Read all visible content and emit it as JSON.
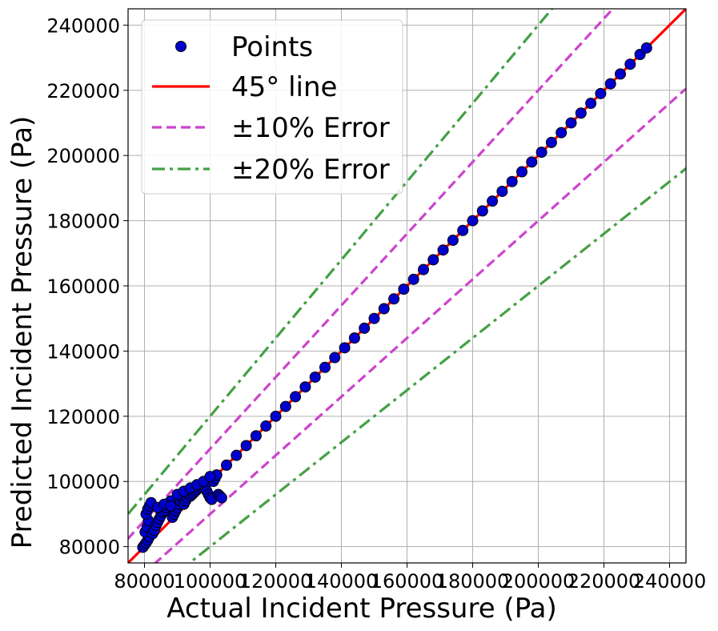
{
  "chart_data": {
    "type": "scatter",
    "xlabel": "Actual Incident Pressure (Pa)",
    "ylabel": "Predicted Incident Pressure (Pa)",
    "xlim": [
      75000,
      245000
    ],
    "ylim": [
      75000,
      245000
    ],
    "xticks": [
      "80000",
      "100000",
      "120000",
      "140000",
      "160000",
      "180000",
      "200000",
      "220000",
      "240000"
    ],
    "yticks": [
      "80000",
      "100000",
      "120000",
      "140000",
      "160000",
      "180000",
      "200000",
      "220000",
      "240000"
    ],
    "grid": true,
    "legend_position": "top-left",
    "legend": [
      {
        "label": "Points",
        "style": "marker",
        "color": "#0000cc"
      },
      {
        "label": "45° line",
        "style": "solid",
        "color": "#ff0000"
      },
      {
        "label": "±10% Error",
        "style": "dashed",
        "color": "#cc44cc"
      },
      {
        "label": "±20% Error",
        "style": "dashdot",
        "color": "#44a044"
      }
    ],
    "reference_lines": [
      {
        "name": "45° line",
        "slope": 1.0
      },
      {
        "name": "+10%",
        "slope": 1.1
      },
      {
        "name": "-10%",
        "slope": 0.9
      },
      {
        "name": "+20%",
        "slope": 1.2
      },
      {
        "name": "-20%",
        "slope": 0.8
      }
    ],
    "points": [
      [
        79500,
        79800
      ],
      [
        80000,
        80500
      ],
      [
        80500,
        81200
      ],
      [
        81000,
        82000
      ],
      [
        81500,
        83000
      ],
      [
        80200,
        84500
      ],
      [
        80800,
        86000
      ],
      [
        81200,
        88000
      ],
      [
        80500,
        90000
      ],
      [
        81000,
        91500
      ],
      [
        81500,
        92500
      ],
      [
        82000,
        93500
      ],
      [
        82500,
        84000
      ],
      [
        83000,
        85000
      ],
      [
        83500,
        86500
      ],
      [
        84000,
        87500
      ],
      [
        84500,
        88500
      ],
      [
        85000,
        89500
      ],
      [
        85500,
        90500
      ],
      [
        86000,
        91000
      ],
      [
        86500,
        92000
      ],
      [
        87000,
        93000
      ],
      [
        87500,
        93500
      ],
      [
        88000,
        94000
      ],
      [
        88500,
        89000
      ],
      [
        89000,
        90000
      ],
      [
        89500,
        91000
      ],
      [
        90000,
        92000
      ],
      [
        90500,
        93000
      ],
      [
        91000,
        94000
      ],
      [
        91500,
        95000
      ],
      [
        92000,
        93000
      ],
      [
        92500,
        94000
      ],
      [
        93000,
        95000
      ],
      [
        93500,
        96000
      ],
      [
        94000,
        95500
      ],
      [
        94500,
        96000
      ],
      [
        95000,
        96500
      ],
      [
        95500,
        97000
      ],
      [
        96000,
        97500
      ],
      [
        96500,
        98000
      ],
      [
        97000,
        98500
      ],
      [
        97500,
        99000
      ],
      [
        98000,
        99500
      ],
      [
        98500,
        98500
      ],
      [
        99000,
        97000
      ],
      [
        99500,
        96000
      ],
      [
        100000,
        95000
      ],
      [
        100500,
        94500
      ],
      [
        101000,
        100000
      ],
      [
        101500,
        101000
      ],
      [
        102000,
        102000
      ],
      [
        102500,
        96000
      ],
      [
        103000,
        95500
      ],
      [
        103500,
        95000
      ],
      [
        84000,
        92000
      ],
      [
        86000,
        93000
      ],
      [
        88000,
        92500
      ],
      [
        90000,
        96000
      ],
      [
        92000,
        97000
      ],
      [
        94000,
        98000
      ],
      [
        96000,
        99000
      ],
      [
        98000,
        100000
      ],
      [
        100000,
        101500
      ],
      [
        105000,
        105000
      ],
      [
        108000,
        108000
      ],
      [
        111000,
        111000
      ],
      [
        114000,
        114000
      ],
      [
        117000,
        117000
      ],
      [
        120000,
        120000
      ],
      [
        123000,
        123000
      ],
      [
        126000,
        126000
      ],
      [
        129000,
        129000
      ],
      [
        132000,
        132000
      ],
      [
        135000,
        135000
      ],
      [
        138000,
        138000
      ],
      [
        141000,
        141000
      ],
      [
        144000,
        144000
      ],
      [
        147000,
        147000
      ],
      [
        150000,
        150000
      ],
      [
        153000,
        153000
      ],
      [
        156000,
        156000
      ],
      [
        159000,
        159000
      ],
      [
        162000,
        162000
      ],
      [
        165000,
        165000
      ],
      [
        168000,
        168000
      ],
      [
        171000,
        171000
      ],
      [
        174000,
        174000
      ],
      [
        177000,
        177000
      ],
      [
        180000,
        180000
      ],
      [
        183000,
        183000
      ],
      [
        186000,
        186000
      ],
      [
        189000,
        189000
      ],
      [
        192000,
        192000
      ],
      [
        195000,
        195000
      ],
      [
        198000,
        198000
      ],
      [
        201000,
        201000
      ],
      [
        204000,
        204000
      ],
      [
        207000,
        207000
      ],
      [
        210000,
        210000
      ],
      [
        213000,
        213000
      ],
      [
        216000,
        216000
      ],
      [
        219000,
        219000
      ],
      [
        222000,
        222000
      ],
      [
        225000,
        225000
      ],
      [
        228000,
        228000
      ],
      [
        231000,
        231000
      ],
      [
        233000,
        233000
      ]
    ]
  }
}
